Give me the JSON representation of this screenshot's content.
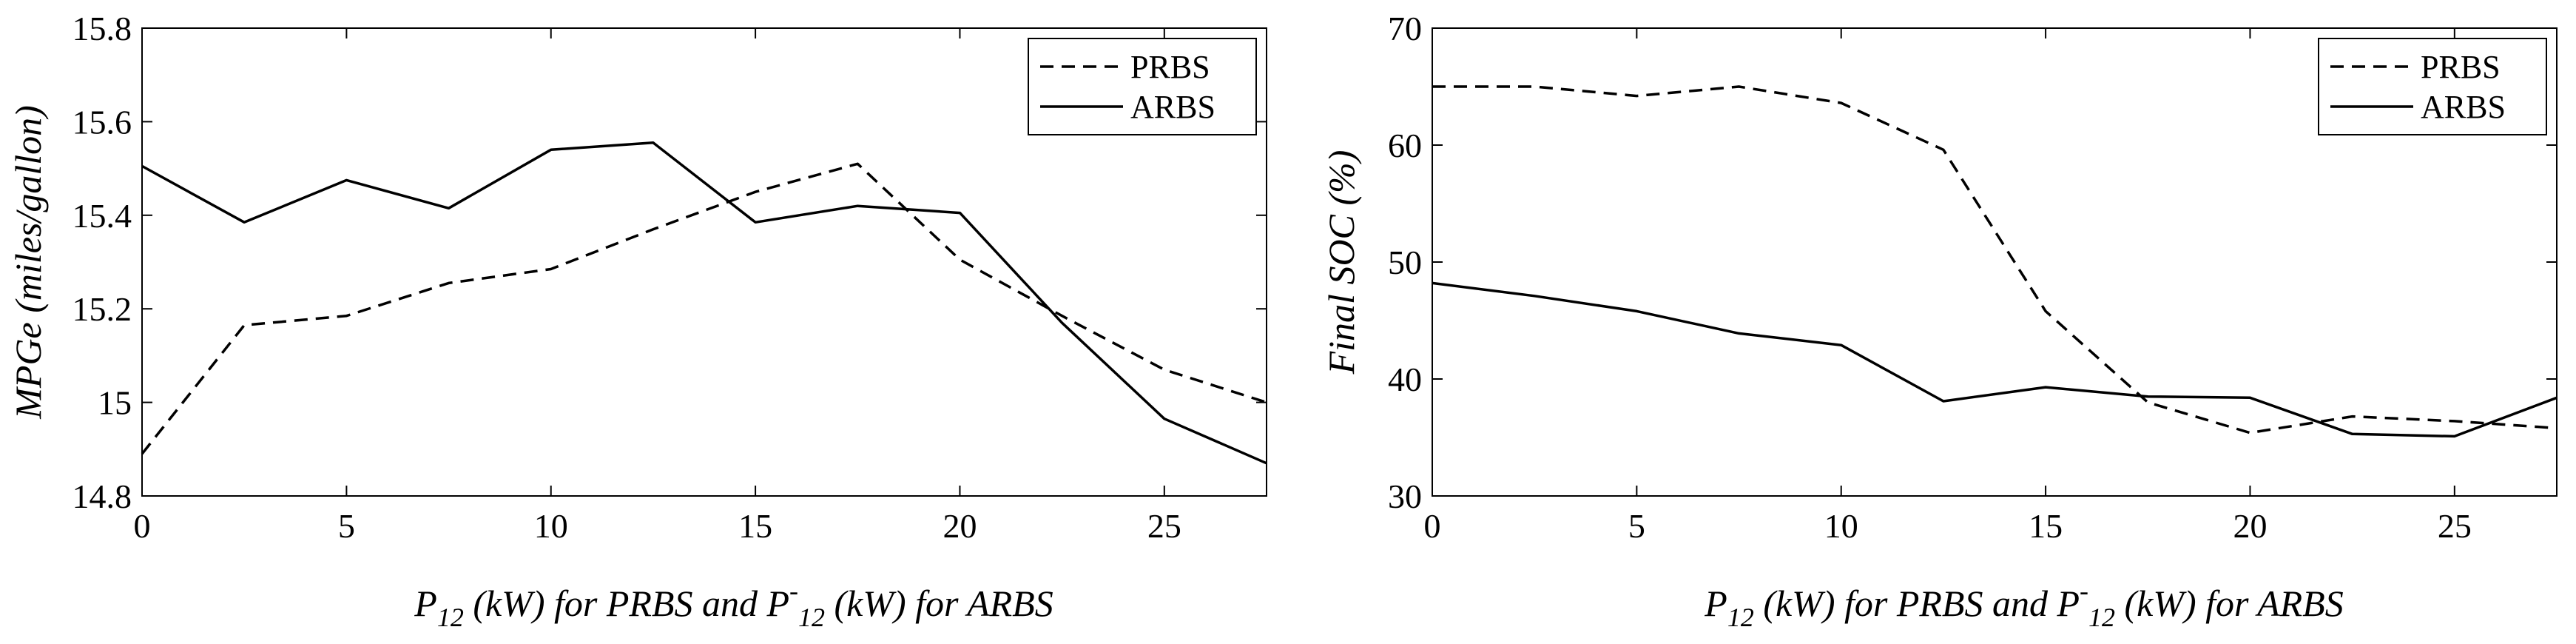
{
  "chart_data": [
    {
      "type": "line",
      "ylabel": "MPGe (miles/gallon)",
      "xlabel": {
        "p": "P",
        "sub1": "12",
        "mid": " (kW) for PRBS and P",
        "sup": "-",
        "sub2": "12",
        "end": " (kW) for ARBS"
      },
      "xlim": [
        0,
        27.5
      ],
      "ylim": [
        14.8,
        15.8
      ],
      "xticks": [
        0,
        5,
        10,
        15,
        20,
        25
      ],
      "yticks": [
        14.8,
        15,
        15.2,
        15.4,
        15.6,
        15.8
      ],
      "xtick_labels": [
        "0",
        "5",
        "10",
        "15",
        "20",
        "25"
      ],
      "ytick_labels": [
        "14.8",
        "15",
        "15.2",
        "15.4",
        "15.6",
        "15.8"
      ],
      "grid": false,
      "legend_position": "top-right",
      "series": [
        {
          "name": "PRBS",
          "style": "dashed",
          "x": [
            0,
            2.5,
            5,
            7.5,
            10,
            12.5,
            15,
            17.5,
            20,
            22.5,
            25,
            27.5
          ],
          "y": [
            14.89,
            15.165,
            15.185,
            15.255,
            15.285,
            15.37,
            15.45,
            15.51,
            15.305,
            15.185,
            15.07,
            15.0
          ]
        },
        {
          "name": "ARBS",
          "style": "solid",
          "x": [
            0,
            2.5,
            5,
            7.5,
            10,
            12.5,
            15,
            17.5,
            20,
            22.5,
            25,
            27.5
          ],
          "y": [
            15.505,
            15.385,
            15.475,
            15.415,
            15.54,
            15.555,
            15.385,
            15.42,
            15.405,
            15.17,
            14.965,
            14.87
          ]
        }
      ]
    },
    {
      "type": "line",
      "ylabel": "Final SOC (%)",
      "xlabel": {
        "p": "P",
        "sub1": "12",
        "mid": " (kW) for PRBS and P",
        "sup": "-",
        "sub2": "12",
        "end": " (kW) for ARBS"
      },
      "xlim": [
        0,
        27.5
      ],
      "ylim": [
        30,
        70
      ],
      "xticks": [
        0,
        5,
        10,
        15,
        20,
        25
      ],
      "yticks": [
        30,
        40,
        50,
        60,
        70
      ],
      "xtick_labels": [
        "0",
        "5",
        "10",
        "15",
        "20",
        "25"
      ],
      "ytick_labels": [
        "30",
        "40",
        "50",
        "60",
        "70"
      ],
      "grid": false,
      "legend_position": "top-right",
      "series": [
        {
          "name": "PRBS",
          "style": "dashed",
          "x": [
            0,
            2.5,
            5,
            7.5,
            10,
            12.5,
            15,
            17.5,
            20,
            22.5,
            25,
            27.5
          ],
          "y": [
            65.0,
            65.0,
            64.2,
            65.0,
            63.6,
            59.6,
            45.8,
            38.0,
            35.4,
            36.8,
            36.4,
            35.8
          ]
        },
        {
          "name": "ARBS",
          "style": "solid",
          "x": [
            0,
            2.5,
            5,
            7.5,
            10,
            12.5,
            15,
            17.5,
            20,
            22.5,
            25,
            27.5
          ],
          "y": [
            48.2,
            47.1,
            45.8,
            43.9,
            42.9,
            38.1,
            39.3,
            38.5,
            38.4,
            35.3,
            35.1,
            38.4
          ]
        }
      ]
    }
  ]
}
